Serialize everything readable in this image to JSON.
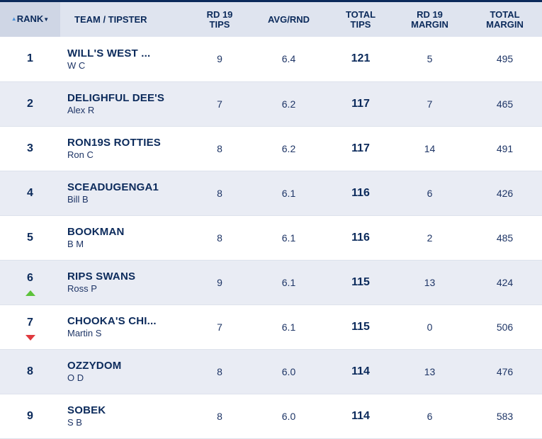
{
  "header": {
    "rank_label": "RANK",
    "team_label": "TEAM / TIPSTER",
    "rd_tips_line1": "RD 19",
    "rd_tips_line2": "TIPS",
    "avg_label": "AVG/RND",
    "total_tips_line1": "TOTAL",
    "total_tips_line2": "TIPS",
    "rd_margin_line1": "RD 19",
    "rd_margin_line2": "MARGIN",
    "total_margin_line1": "TOTAL",
    "total_margin_line2": "MARGIN"
  },
  "sort": {
    "column": "rank",
    "icons": [
      "sort-up-icon",
      "sort-down-icon"
    ],
    "color_up": "#4a90d9"
  },
  "colors": {
    "navy": "#0b2a5b",
    "row_alt": "#e9ecf4",
    "up": "#5cc23a",
    "down": "#e0393e"
  },
  "rows": [
    {
      "rank": "1",
      "team": "WILL'S WEST ...",
      "tipster": "W C",
      "rd_tips": "9",
      "avg": "6.4",
      "total_tips": "121",
      "rd_margin": "5",
      "total_margin": "495",
      "movement": ""
    },
    {
      "rank": "2",
      "team": "DELIGHFUL DEE'S",
      "tipster": "Alex R",
      "rd_tips": "7",
      "avg": "6.2",
      "total_tips": "117",
      "rd_margin": "7",
      "total_margin": "465",
      "movement": ""
    },
    {
      "rank": "3",
      "team": "RON19S ROTTIES",
      "tipster": "Ron C",
      "rd_tips": "8",
      "avg": "6.2",
      "total_tips": "117",
      "rd_margin": "14",
      "total_margin": "491",
      "movement": ""
    },
    {
      "rank": "4",
      "team": "SCEADUGENGA1",
      "tipster": "Bill B",
      "rd_tips": "8",
      "avg": "6.1",
      "total_tips": "116",
      "rd_margin": "6",
      "total_margin": "426",
      "movement": ""
    },
    {
      "rank": "5",
      "team": "BOOKMAN",
      "tipster": "B M",
      "rd_tips": "8",
      "avg": "6.1",
      "total_tips": "116",
      "rd_margin": "2",
      "total_margin": "485",
      "movement": ""
    },
    {
      "rank": "6",
      "team": "RIPS SWANS",
      "tipster": "Ross P",
      "rd_tips": "9",
      "avg": "6.1",
      "total_tips": "115",
      "rd_margin": "13",
      "total_margin": "424",
      "movement": "up"
    },
    {
      "rank": "7",
      "team": "CHOOKA'S CHI...",
      "tipster": "Martin S",
      "rd_tips": "7",
      "avg": "6.1",
      "total_tips": "115",
      "rd_margin": "0",
      "total_margin": "506",
      "movement": "down"
    },
    {
      "rank": "8",
      "team": "OZZYDOM",
      "tipster": "O D",
      "rd_tips": "8",
      "avg": "6.0",
      "total_tips": "114",
      "rd_margin": "13",
      "total_margin": "476",
      "movement": ""
    },
    {
      "rank": "9",
      "team": "SOBEK",
      "tipster": "S B",
      "rd_tips": "8",
      "avg": "6.0",
      "total_tips": "114",
      "rd_margin": "6",
      "total_margin": "583",
      "movement": ""
    }
  ]
}
